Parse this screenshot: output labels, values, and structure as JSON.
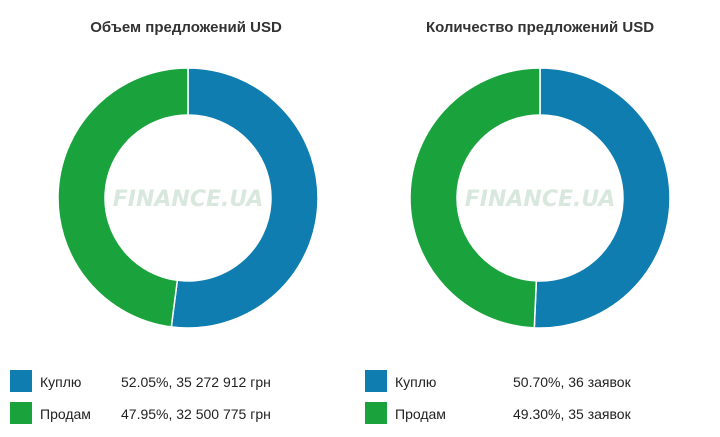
{
  "watermark": "FINANCE.UA",
  "chart_data": [
    {
      "type": "pie",
      "title": "Объем предложений USD",
      "slices": [
        {
          "label": "Куплю",
          "value": 52.05,
          "value_text": "52.05%, 35 272 912 грн",
          "color": "#0f7db0"
        },
        {
          "label": "Продам",
          "value": 47.95,
          "value_text": "47.95%, 32 500 775 грн",
          "color": "#1aa33d"
        }
      ]
    },
    {
      "type": "pie",
      "title": "Количество предложений USD",
      "slices": [
        {
          "label": "Куплю",
          "value": 50.7,
          "value_text": "50.70%, 36 заявок",
          "color": "#0f7db0"
        },
        {
          "label": "Продам",
          "value": 49.3,
          "value_text": "49.30%, 35 заявок",
          "color": "#1aa33d"
        }
      ]
    }
  ]
}
